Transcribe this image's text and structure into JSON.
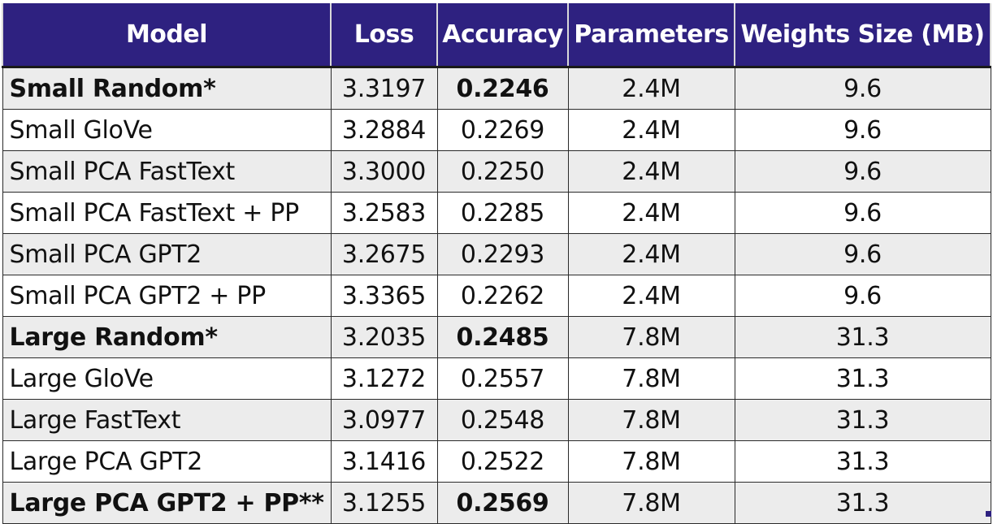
{
  "table": {
    "headers": {
      "model": "Model",
      "loss": "Loss",
      "accuracy": "Accuracy",
      "parameters": "Parameters",
      "weights": "Weights Size (MB)"
    },
    "rows": [
      {
        "model": "Small Random*",
        "loss": "3.3197",
        "accuracy": "0.2246",
        "parameters": "2.4M",
        "weights": "9.6",
        "model_bold": true,
        "accuracy_bold": true
      },
      {
        "model": "Small GloVe",
        "loss": "3.2884",
        "accuracy": "0.2269",
        "parameters": "2.4M",
        "weights": "9.6",
        "model_bold": false,
        "accuracy_bold": false
      },
      {
        "model": "Small PCA FastText",
        "loss": "3.3000",
        "accuracy": "0.2250",
        "parameters": "2.4M",
        "weights": "9.6",
        "model_bold": false,
        "accuracy_bold": false
      },
      {
        "model": "Small PCA FastText + PP",
        "loss": "3.2583",
        "accuracy": "0.2285",
        "parameters": "2.4M",
        "weights": "9.6",
        "model_bold": false,
        "accuracy_bold": false
      },
      {
        "model": "Small PCA GPT2",
        "loss": "3.2675",
        "accuracy": "0.2293",
        "parameters": "2.4M",
        "weights": "9.6",
        "model_bold": false,
        "accuracy_bold": false
      },
      {
        "model": "Small PCA GPT2 + PP",
        "loss": "3.3365",
        "accuracy": "0.2262",
        "parameters": "2.4M",
        "weights": "9.6",
        "model_bold": false,
        "accuracy_bold": false
      },
      {
        "model": "Large Random*",
        "loss": "3.2035",
        "accuracy": "0.2485",
        "parameters": "7.8M",
        "weights": "31.3",
        "model_bold": true,
        "accuracy_bold": true
      },
      {
        "model": "Large GloVe",
        "loss": "3.1272",
        "accuracy": "0.2557",
        "parameters": "7.8M",
        "weights": "31.3",
        "model_bold": false,
        "accuracy_bold": false
      },
      {
        "model": "Large FastText",
        "loss": "3.0977",
        "accuracy": "0.2548",
        "parameters": "7.8M",
        "weights": "31.3",
        "model_bold": false,
        "accuracy_bold": false
      },
      {
        "model": "Large PCA GPT2",
        "loss": "3.1416",
        "accuracy": "0.2522",
        "parameters": "7.8M",
        "weights": "31.3",
        "model_bold": false,
        "accuracy_bold": false
      },
      {
        "model": "Large PCA GPT2 + PP**",
        "loss": "3.1255",
        "accuracy": "0.2569",
        "parameters": "7.8M",
        "weights": "31.3",
        "model_bold": true,
        "accuracy_bold": true
      }
    ]
  },
  "colors": {
    "header_bg": "#2e2180",
    "header_text": "#ffffff",
    "row_shaded": "#ececec",
    "row_plain": "#ffffff",
    "grid": "#2a2a2a"
  }
}
